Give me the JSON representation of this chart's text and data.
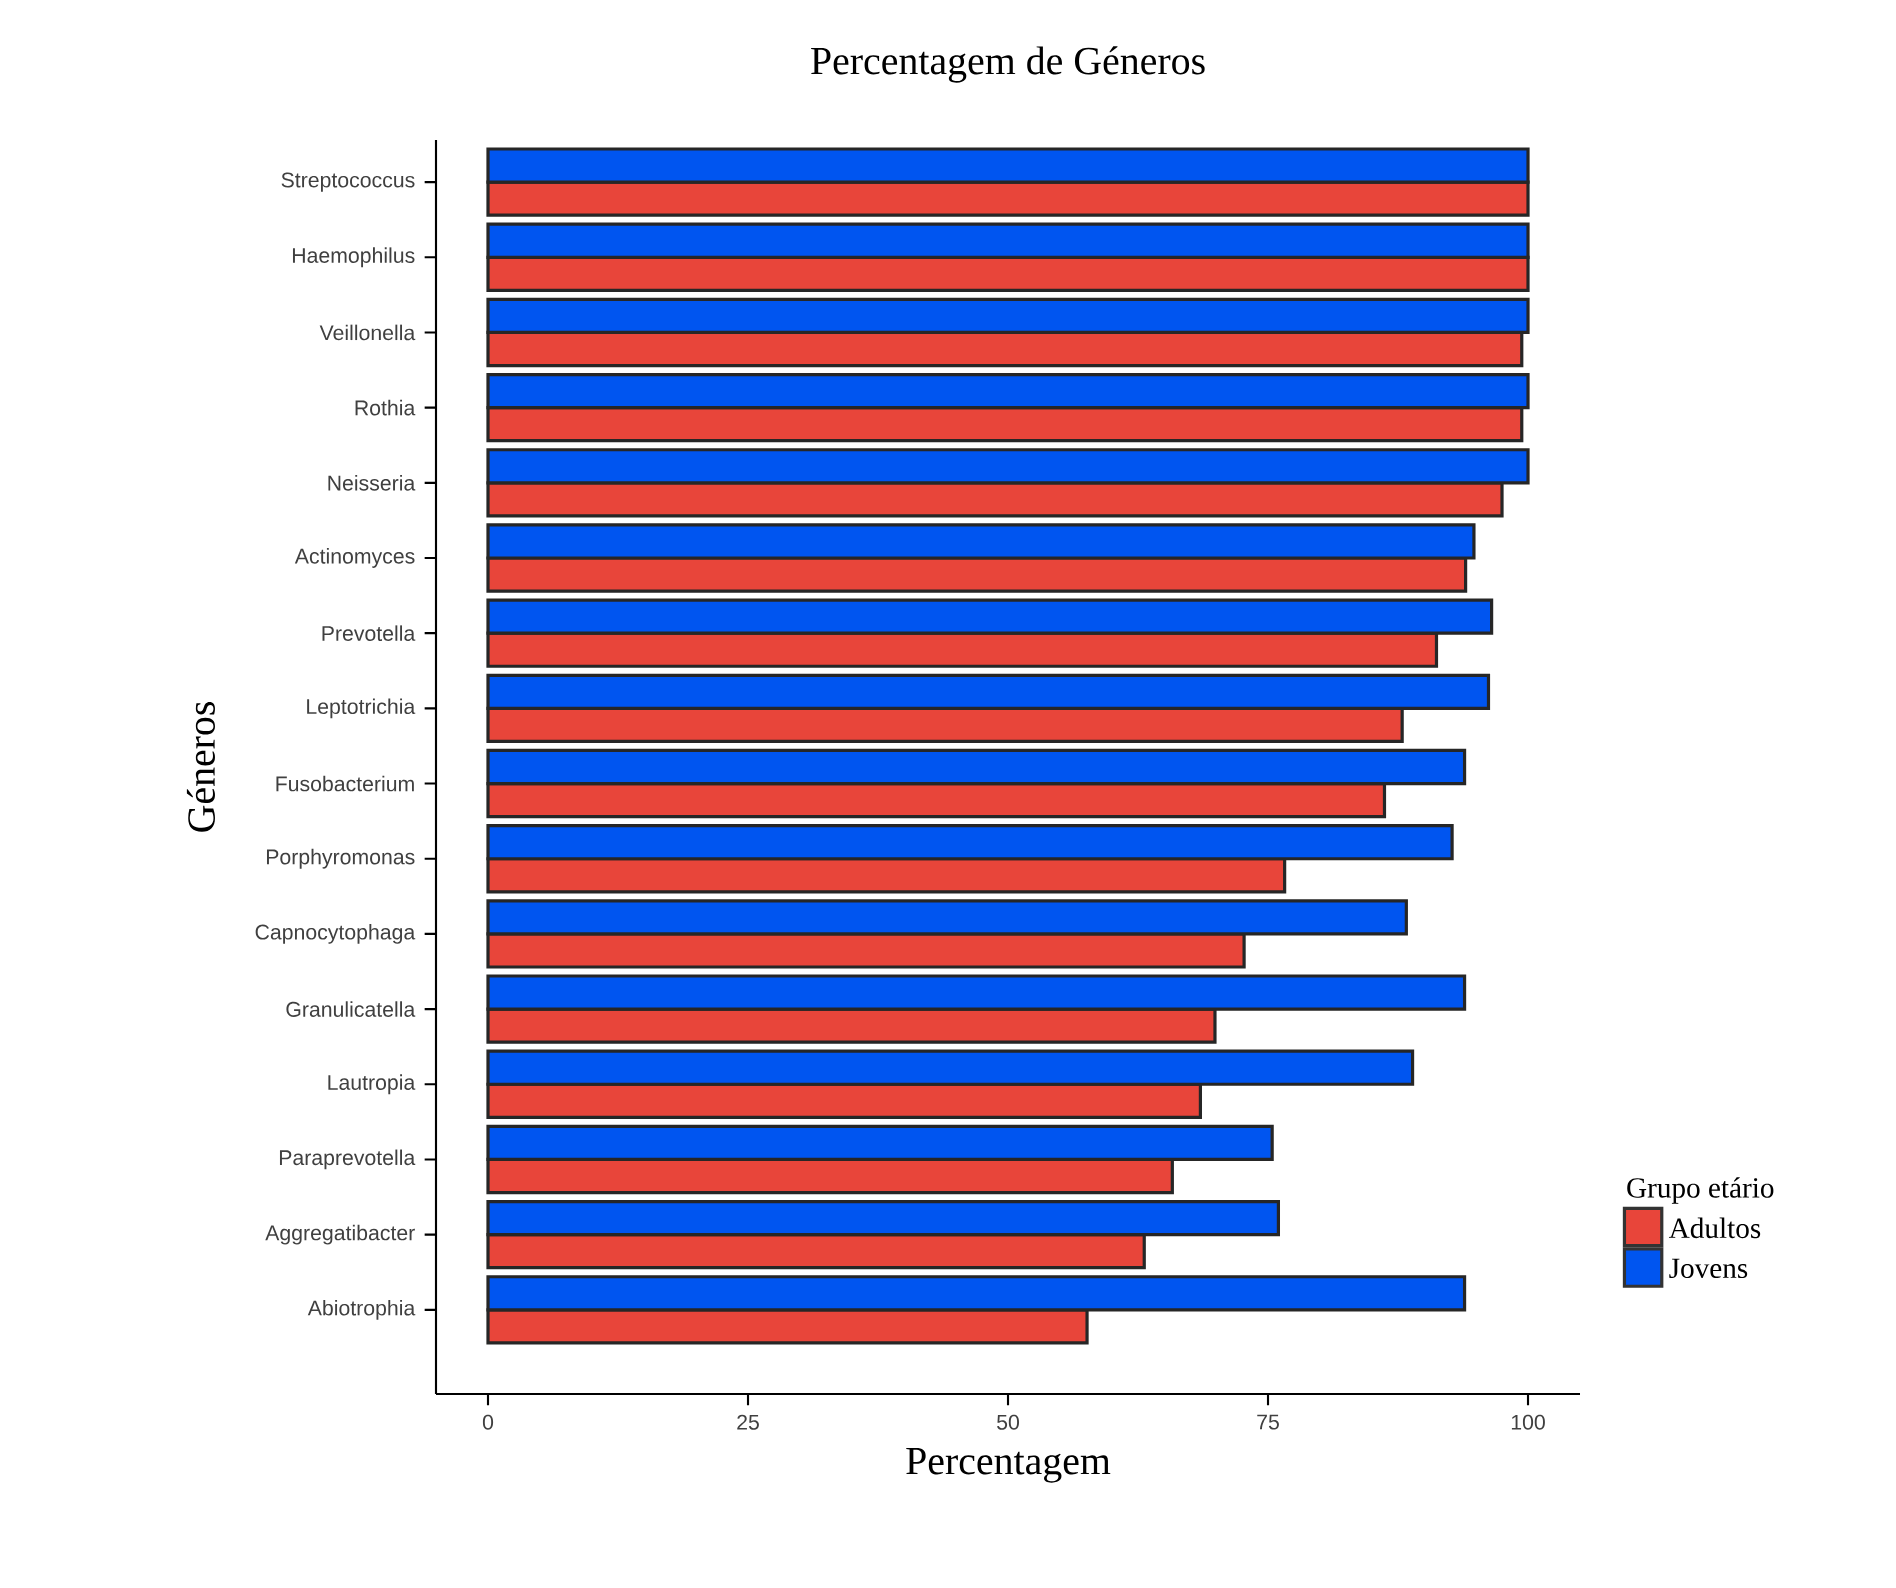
{
  "chart_data": {
    "type": "bar",
    "orientation": "horizontal",
    "title": "Percentagem de Géneros",
    "xlabel": "Percentagem",
    "ylabel": "Géneros",
    "categories": [
      "Streptococcus",
      "Haemophilus",
      "Veillonella",
      "Rothia",
      "Neisseria",
      "Actinomyces",
      "Prevotella",
      "Leptotrichia",
      "Fusobacterium",
      "Porphyromonas",
      "Capnocytophaga",
      "Granulicatella",
      "Lautropia",
      "Paraprevotella",
      "Aggregatibacter",
      "Abiotrophia"
    ],
    "series": [
      {
        "name": "Adultos",
        "color": "#e8453a",
        "values": [
          100,
          100,
          99.4,
          99.4,
          97.5,
          94,
          91.2,
          87.9,
          86.2,
          76.6,
          72.7,
          69.9,
          68.5,
          65.8,
          63.1,
          57.6
        ]
      },
      {
        "name": "Jovens",
        "color": "#0055f0",
        "values": [
          100,
          100,
          100,
          100,
          100,
          94.8,
          96.5,
          96.2,
          93.9,
          92.7,
          88.3,
          93.9,
          88.9,
          75.4,
          76,
          93.9
        ]
      }
    ],
    "xlim": [
      -5,
      105
    ],
    "xticks": [
      0,
      25,
      50,
      75,
      100
    ],
    "legend": "right",
    "legend_title": "Grupo etário"
  }
}
